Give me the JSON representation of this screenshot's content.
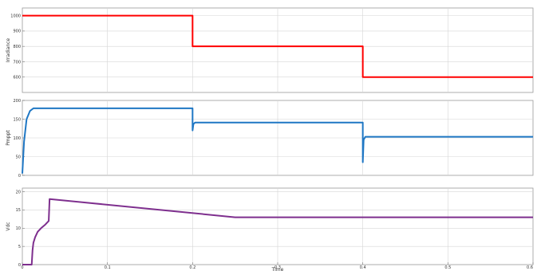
{
  "chart_data": [
    {
      "type": "line",
      "ylabel": "Irradiance",
      "xlim": [
        0,
        0.6
      ],
      "ylim": [
        500,
        1050
      ],
      "yticks": [
        600,
        700,
        800,
        900,
        1000
      ],
      "ytick_labels": [
        "600",
        "700",
        "800",
        "900",
        "1000"
      ],
      "grid": true,
      "color": "#ff0000",
      "series": [
        {
          "x": [
            0,
            0.2,
            0.2,
            0.4,
            0.4,
            0.6
          ],
          "y": [
            1000,
            1000,
            800,
            800,
            600,
            600
          ]
        }
      ]
    },
    {
      "type": "line",
      "ylabel": "Pmppt",
      "xlim": [
        0,
        0.6
      ],
      "ylim": [
        0,
        200
      ],
      "yticks": [
        0,
        50,
        100,
        150,
        200
      ],
      "ytick_labels": [
        "0",
        "50",
        "100",
        "150",
        "200"
      ],
      "grid": true,
      "color": "#1f77c4",
      "series": [
        {
          "x": [
            0,
            0.002,
            0.005,
            0.009,
            0.013,
            0.2,
            0.2,
            0.201,
            0.203,
            0.4,
            0.4,
            0.401,
            0.403,
            0.6
          ],
          "y": [
            5,
            90,
            150,
            172,
            179,
            179,
            120,
            137,
            141,
            141,
            35,
            95,
            103,
            103
          ]
        }
      ]
    },
    {
      "type": "line",
      "ylabel": "Vdc",
      "xlim": [
        0,
        0.6
      ],
      "ylim": [
        0,
        21
      ],
      "yticks": [
        0,
        5,
        10,
        15,
        20
      ],
      "ytick_labels": [
        "0",
        "5",
        "10",
        "15",
        "20"
      ],
      "xticks": [
        0,
        0.1,
        0.2,
        0.3,
        0.4,
        0.5,
        0.6
      ],
      "xtick_labels": [
        "0",
        "0.1",
        "0.2",
        "0.3",
        "0.4",
        "0.5",
        "0.6"
      ],
      "xlabel": "Time",
      "grid": true,
      "color": "#7e2f8e",
      "series": [
        {
          "x": [
            0,
            0.011,
            0.012,
            0.013,
            0.015,
            0.018,
            0.022,
            0.027,
            0.031,
            0.032,
            0.25,
            0.6
          ],
          "y": [
            0,
            0,
            4,
            6,
            7.5,
            9,
            10,
            11,
            12,
            18,
            13,
            13
          ]
        }
      ]
    }
  ]
}
